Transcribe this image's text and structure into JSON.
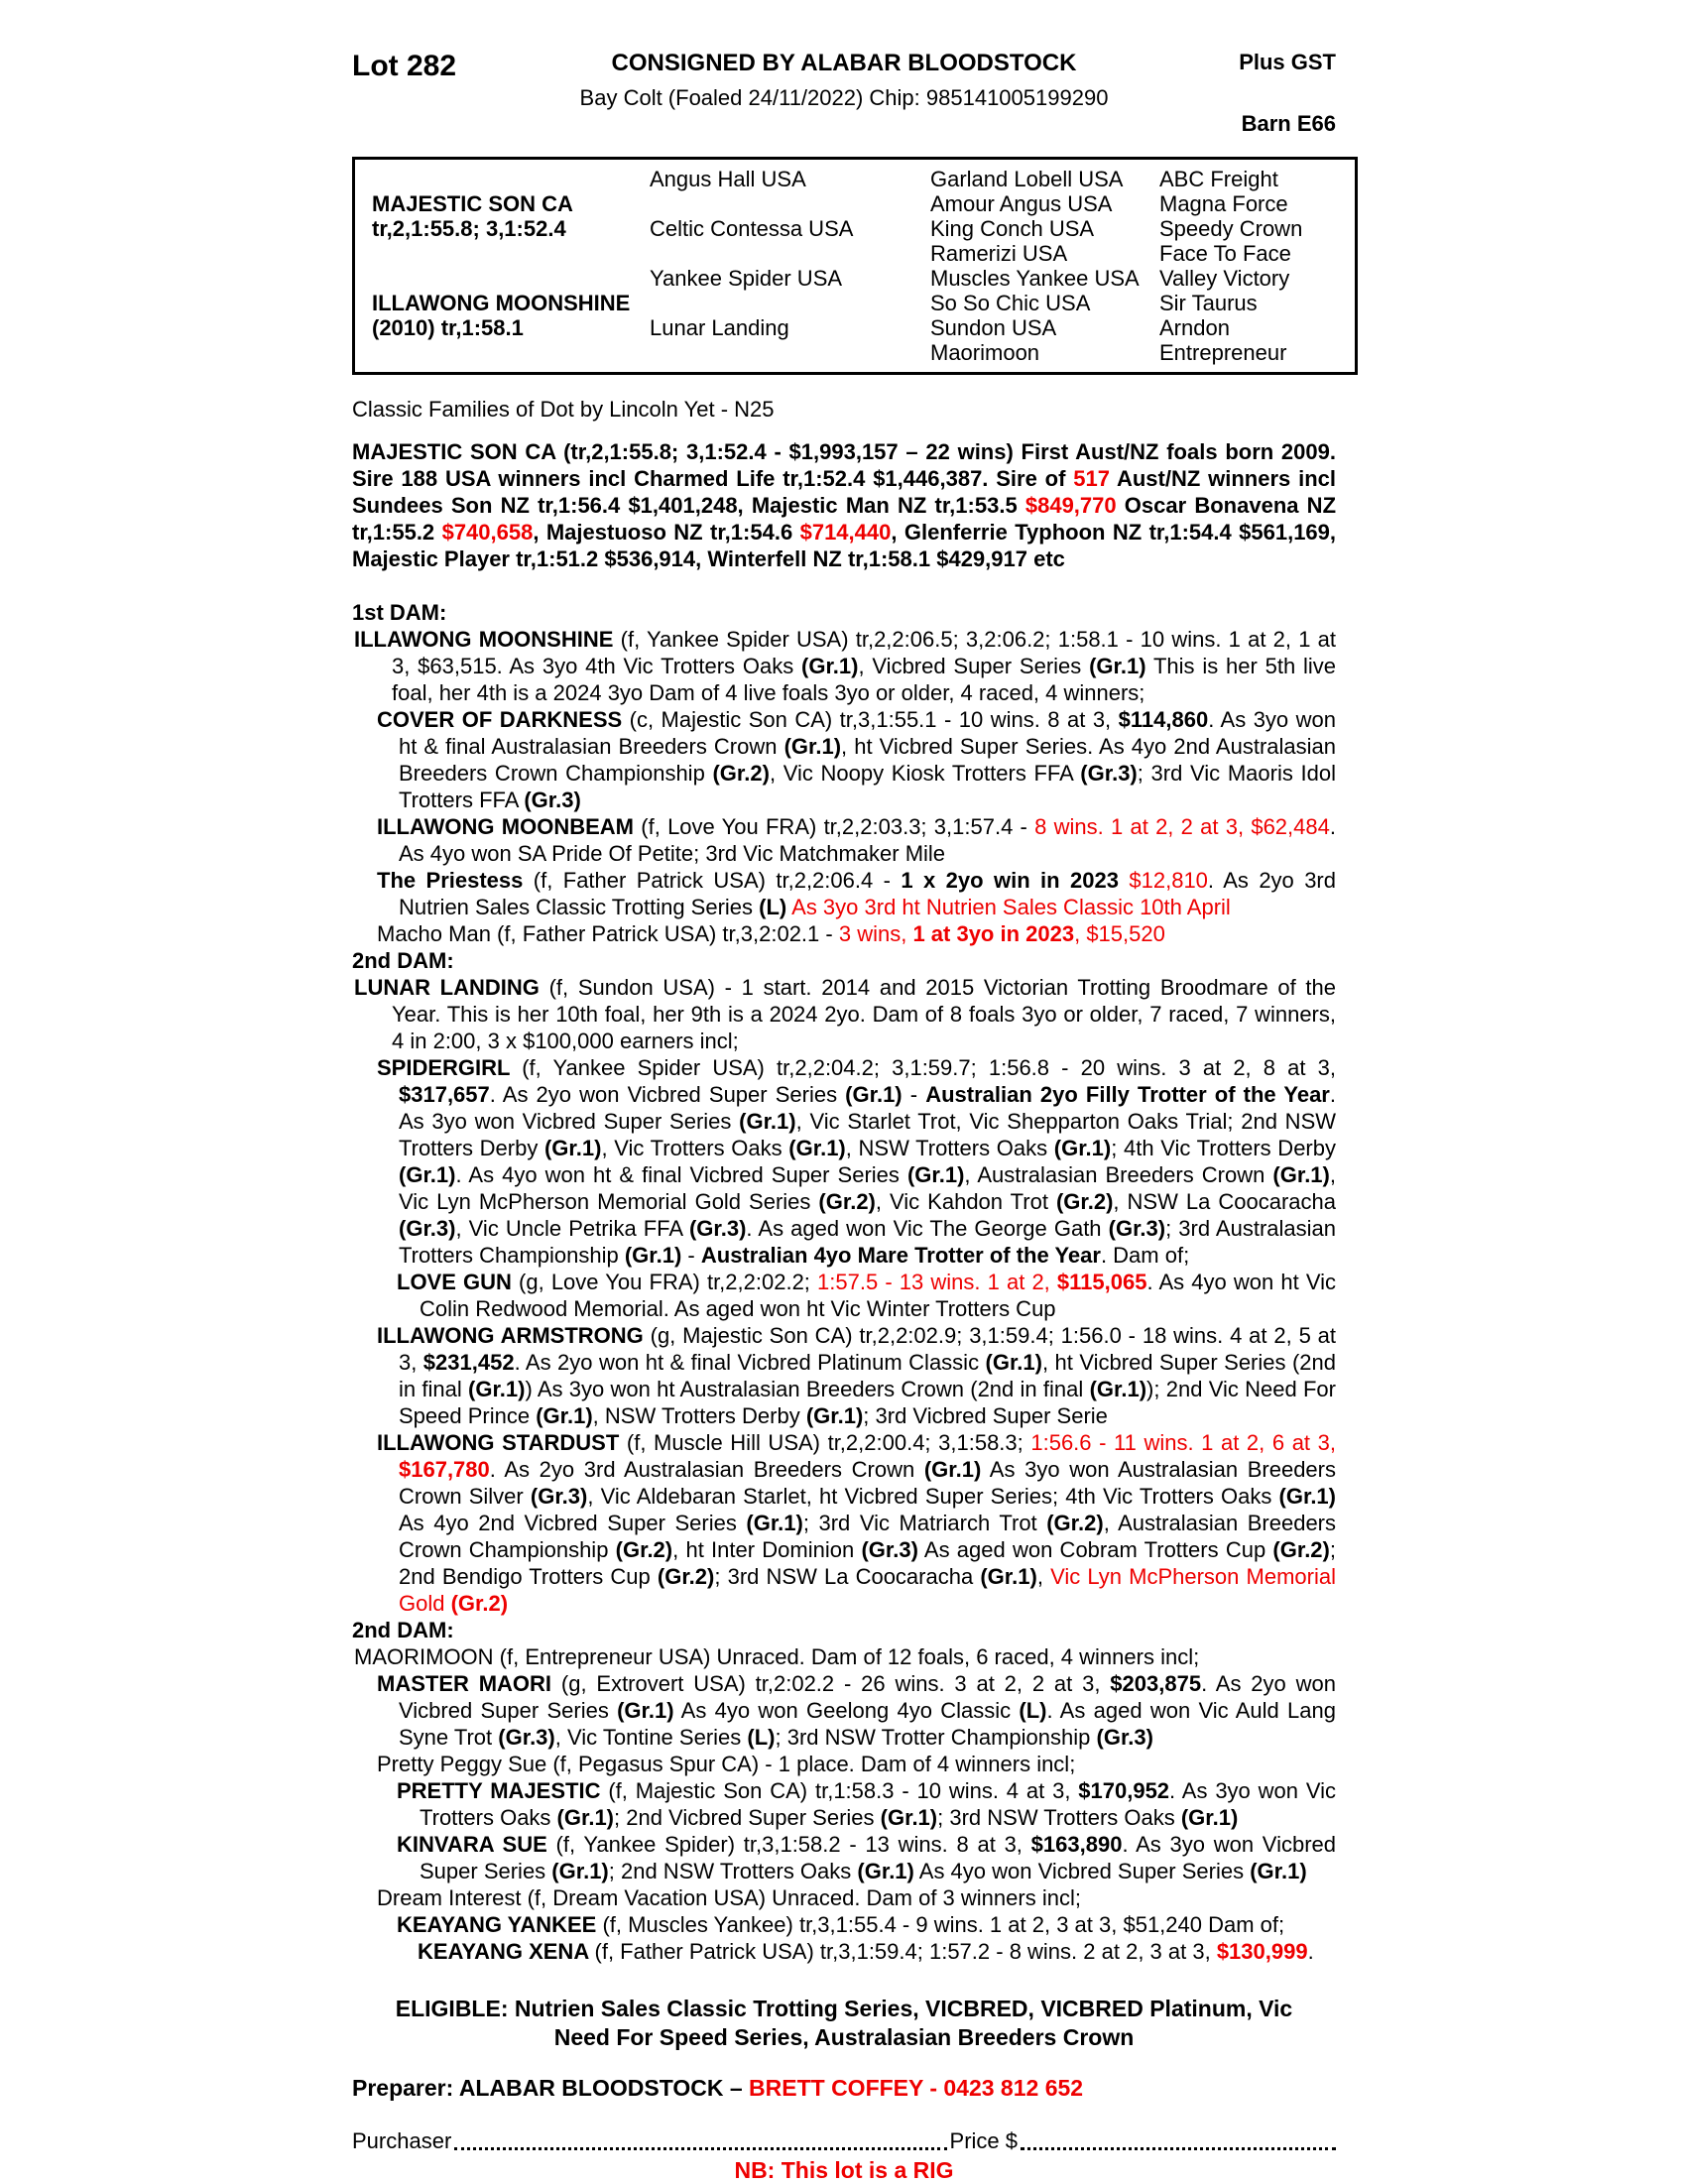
{
  "colors": {
    "accent_red": "#ee0000",
    "text": "#000000"
  },
  "header": {
    "lot": "Lot 282",
    "consignor": "CONSIGNED BY ALABAR BLOODSTOCK",
    "plus_gst": "Plus GST",
    "description": "Bay Colt (Foaled 24/11/2022) Chip: 985141005199290",
    "barn": "Barn E66"
  },
  "pedigree_table": {
    "cells": [
      {
        "r": 1,
        "c": 2,
        "t": "Angus Hall USA"
      },
      {
        "r": 1,
        "c": 3,
        "t": "Garland Lobell USA"
      },
      {
        "r": 1,
        "c": 4,
        "t": "ABC Freight"
      },
      {
        "r": 2,
        "c": 1,
        "t": "MAJESTIC SON CA",
        "b": true
      },
      {
        "r": 2,
        "c": 3,
        "t": "Amour Angus USA"
      },
      {
        "r": 2,
        "c": 4,
        "t": "Magna Force"
      },
      {
        "r": 3,
        "c": 1,
        "t": "tr,2,1:55.8; 3,1:52.4",
        "b": true
      },
      {
        "r": 3,
        "c": 2,
        "t": "Celtic Contessa USA"
      },
      {
        "r": 3,
        "c": 3,
        "t": "King Conch USA"
      },
      {
        "r": 3,
        "c": 4,
        "t": "Speedy Crown"
      },
      {
        "r": 4,
        "c": 3,
        "t": "Ramerizi USA"
      },
      {
        "r": 4,
        "c": 4,
        "t": "Face To Face"
      },
      {
        "r": 5,
        "c": 2,
        "t": "Yankee Spider USA"
      },
      {
        "r": 5,
        "c": 3,
        "t": "Muscles Yankee USA"
      },
      {
        "r": 5,
        "c": 4,
        "t": "Valley Victory"
      },
      {
        "r": 6,
        "c": 1,
        "t": "ILLAWONG MOONSHINE",
        "b": true
      },
      {
        "r": 6,
        "c": 3,
        "t": "So So Chic USA"
      },
      {
        "r": 6,
        "c": 4,
        "t": "Sir Taurus"
      },
      {
        "r": 7,
        "c": 1,
        "t": "(2010) tr,1:58.1",
        "b": true
      },
      {
        "r": 7,
        "c": 2,
        "t": "Lunar Landing"
      },
      {
        "r": 7,
        "c": 3,
        "t": "Sundon USA"
      },
      {
        "r": 7,
        "c": 4,
        "t": "Arndon"
      },
      {
        "r": 8,
        "c": 3,
        "t": "Maorimoon"
      },
      {
        "r": 8,
        "c": 4,
        "t": "Entrepreneur"
      }
    ]
  },
  "family_line": "Classic Families of Dot by Lincoln Yet - N25",
  "body": {
    "paragraphs": [
      {
        "cls": "p-sire",
        "seg": [
          {
            "t": "MAJESTIC SON CA (tr,2,1:55.8; 3,1:52.4 - $1,993,157 – 22 wins) First Aust/NZ foals born 2009. Sire 188 USA winners incl Charmed Life tr,1:52.4 $1,446,387. Sire of "
          },
          {
            "t": "517",
            "s": "r"
          },
          {
            "t": " Aust/NZ winners incl Sundees Son NZ tr,1:56.4 $1,401,248, Majestic Man NZ tr,1:53.5 "
          },
          {
            "t": "$849,770",
            "s": "r"
          },
          {
            "t": " Oscar Bonavena NZ tr,1:55.2 "
          },
          {
            "t": "$740,658",
            "s": "r"
          },
          {
            "t": ", Majestuoso NZ tr,1:54.6 "
          },
          {
            "t": "$714,440",
            "s": "r"
          },
          {
            "t": ", Glenferrie Typhoon NZ tr,1:54.4 $561,169, Majestic Player tr,1:51.2 $536,914, Winterfell NZ tr,1:58.1 $429,917 etc"
          }
        ]
      },
      {
        "cls": "p-head gap",
        "seg": [
          {
            "t": "1st DAM:"
          }
        ]
      },
      {
        "cls": "p-dam",
        "seg": [
          {
            "t": "ILLAWONG MOONSHINE ",
            "s": "b"
          },
          {
            "t": "(f, Yankee Spider USA) tr,2,2:06.5; 3,2:06.2; 1:58.1 - 10 wins. 1 at 2, 1 at 3, $63,515. As 3yo 4th Vic Trotters Oaks "
          },
          {
            "t": "(Gr.1)",
            "s": "b"
          },
          {
            "t": ", Vicbred Super Series "
          },
          {
            "t": "(Gr.1)",
            "s": "b"
          },
          {
            "t": " This is her 5th live foal, her 4th is a 2024 3yo Dam of 4 live foals 3yo or older, 4 raced, 4 winners;"
          }
        ]
      },
      {
        "cls": "p-prog1",
        "seg": [
          {
            "t": "COVER OF DARKNESS ",
            "s": "b"
          },
          {
            "t": "(c, Majestic Son CA) tr,3,1:55.1 - 10 wins. 8 at 3, "
          },
          {
            "t": "$114,860",
            "s": "b"
          },
          {
            "t": ". As 3yo won ht & final Australasian Breeders Crown "
          },
          {
            "t": "(Gr.1)",
            "s": "b"
          },
          {
            "t": ", ht Vicbred Super Series. As 4yo 2nd Australasian Breeders Crown Championship "
          },
          {
            "t": "(Gr.2)",
            "s": "b"
          },
          {
            "t": ", Vic Noopy Kiosk Trotters FFA "
          },
          {
            "t": "(Gr.3)",
            "s": "b"
          },
          {
            "t": "; 3rd Vic Maoris Idol Trotters FFA "
          },
          {
            "t": "(Gr.3)",
            "s": "b"
          }
        ]
      },
      {
        "cls": "p-prog1",
        "seg": [
          {
            "t": "ILLAWONG MOONBEAM ",
            "s": "b"
          },
          {
            "t": "(f, Love You FRA) tr,2,2:03.3; 3,1:57.4 - "
          },
          {
            "t": "8 wins. 1 at 2, 2 at 3, $62,484",
            "s": "r"
          },
          {
            "t": ". As 4yo won SA Pride Of Petite; 3rd Vic Matchmaker Mile"
          }
        ]
      },
      {
        "cls": "p-prog1",
        "seg": [
          {
            "t": "The Priestess ",
            "s": "b"
          },
          {
            "t": "(f, Father Patrick USA) tr,2,2:06.4 - "
          },
          {
            "t": "1 x 2yo win in 2023",
            "s": "b"
          },
          {
            "t": "  "
          },
          {
            "t": "$12,810",
            "s": "r"
          },
          {
            "t": ". As 2yo 3rd Nutrien Sales Classic Trotting Series "
          },
          {
            "t": "(L)",
            "s": "b"
          },
          {
            "t": " "
          },
          {
            "t": "As 3yo 3rd ht Nutrien Sales Classic 10th April",
            "s": "r"
          }
        ]
      },
      {
        "cls": "p-prog1",
        "seg": [
          {
            "t": "Macho Man (f, Father Patrick USA) tr,3,2:02.1 - "
          },
          {
            "t": "3 wins, ",
            "s": "r"
          },
          {
            "t": "1 at 3yo in 2023",
            "s": "br"
          },
          {
            "t": ", $15,520",
            "s": "r"
          }
        ]
      },
      {
        "cls": "p-head",
        "seg": [
          {
            "t": "2nd DAM:"
          }
        ]
      },
      {
        "cls": "p-dam",
        "seg": [
          {
            "t": "LUNAR LANDING ",
            "s": "b"
          },
          {
            "t": "(f, Sundon USA) - 1 start. 2014 and 2015 Victorian Trotting Broodmare of the Year. This is her 10th foal, her 9th is a 2024 2yo. Dam of 8 foals 3yo or older, 7 raced, 7 winners, 4 in 2:00, 3 x $100,000 earners incl;"
          }
        ]
      },
      {
        "cls": "p-prog1",
        "seg": [
          {
            "t": "SPIDERGIRL ",
            "s": "b"
          },
          {
            "t": "(f, Yankee Spider USA) tr,2,2:04.2; 3,1:59.7; 1:56.8 - 20 wins. 3 at 2, 8 at 3, "
          },
          {
            "t": "$317,657",
            "s": "b"
          },
          {
            "t": ". As 2yo won Vicbred Super Series "
          },
          {
            "t": "(Gr.1)",
            "s": "b"
          },
          {
            "t": " - "
          },
          {
            "t": "Australian 2yo Filly Trotter of the Year",
            "s": "b"
          },
          {
            "t": ". As 3yo won Vicbred Super Series "
          },
          {
            "t": "(Gr.1)",
            "s": "b"
          },
          {
            "t": ", Vic Starlet Trot, Vic Shepparton Oaks Trial; 2nd NSW Trotters Derby "
          },
          {
            "t": "(Gr.1)",
            "s": "b"
          },
          {
            "t": ", Vic Trotters Oaks "
          },
          {
            "t": "(Gr.1)",
            "s": "b"
          },
          {
            "t": ", NSW Trotters Oaks "
          },
          {
            "t": "(Gr.1)",
            "s": "b"
          },
          {
            "t": "; 4th Vic Trotters Derby "
          },
          {
            "t": "(Gr.1)",
            "s": "b"
          },
          {
            "t": ". As 4yo won ht & final Vicbred Super Series "
          },
          {
            "t": "(Gr.1)",
            "s": "b"
          },
          {
            "t": ", Australasian Breeders Crown "
          },
          {
            "t": "(Gr.1)",
            "s": "b"
          },
          {
            "t": ", Vic Lyn McPherson Memorial Gold Series "
          },
          {
            "t": "(Gr.2)",
            "s": "b"
          },
          {
            "t": ", Vic Kahdon Trot "
          },
          {
            "t": "(Gr.2)",
            "s": "b"
          },
          {
            "t": ", NSW La Coocaracha "
          },
          {
            "t": "(Gr.3)",
            "s": "b"
          },
          {
            "t": ", Vic Uncle Petrika FFA "
          },
          {
            "t": "(Gr.3)",
            "s": "b"
          },
          {
            "t": ". As aged won Vic The George Gath "
          },
          {
            "t": "(Gr.3)",
            "s": "b"
          },
          {
            "t": "; 3rd Australasian Trotters Championship "
          },
          {
            "t": "(Gr.1)",
            "s": "b"
          },
          {
            "t": " - "
          },
          {
            "t": "Australian 4yo Mare Trotter of the Year",
            "s": "b"
          },
          {
            "t": ". Dam of;"
          }
        ]
      },
      {
        "cls": "p-prog2",
        "seg": [
          {
            "t": "LOVE GUN ",
            "s": "b"
          },
          {
            "t": "(g, Love You FRA) tr,2,2:02.2; "
          },
          {
            "t": "1:57.5 - 13 wins. 1 at 2, ",
            "s": "r"
          },
          {
            "t": "$115,065",
            "s": "br"
          },
          {
            "t": ". As 4yo won ht Vic Colin Redwood Memorial. As aged won ht Vic Winter Trotters Cup"
          }
        ]
      },
      {
        "cls": "p-prog1",
        "seg": [
          {
            "t": "ILLAWONG ARMSTRONG ",
            "s": "b"
          },
          {
            "t": "(g, Majestic Son CA) tr,2,2:02.9; 3,1:59.4; 1:56.0 - 18 wins. 4 at 2, 5 at 3, "
          },
          {
            "t": "$231,452",
            "s": "b"
          },
          {
            "t": ". As 2yo won ht & final Vicbred Platinum Classic "
          },
          {
            "t": "(Gr.1)",
            "s": "b"
          },
          {
            "t": ", ht Vicbred Super Series (2nd in final "
          },
          {
            "t": "(Gr.1)",
            "s": "b"
          },
          {
            "t": ") As 3yo won ht Australasian Breeders Crown (2nd in final "
          },
          {
            "t": "(Gr.1)",
            "s": "b"
          },
          {
            "t": "); 2nd Vic Need For Speed Prince "
          },
          {
            "t": "(Gr.1)",
            "s": "b"
          },
          {
            "t": ", NSW Trotters Derby "
          },
          {
            "t": "(Gr.1)",
            "s": "b"
          },
          {
            "t": "; 3rd Vicbred Super Serie"
          }
        ]
      },
      {
        "cls": "p-prog1",
        "seg": [
          {
            "t": "ILLAWONG STARDUST ",
            "s": "b"
          },
          {
            "t": "(f, Muscle Hill USA) tr,2,2:00.4; 3,1:58.3; "
          },
          {
            "t": "1:56.6 - 11 wins. 1 at 2, 6 at 3, ",
            "s": "r"
          },
          {
            "t": "$167,780",
            "s": "br"
          },
          {
            "t": ". As 2yo 3rd Australasian Breeders Crown "
          },
          {
            "t": "(Gr.1)",
            "s": "b"
          },
          {
            "t": " As 3yo won Australasian Breeders Crown Silver "
          },
          {
            "t": "(Gr.3)",
            "s": "b"
          },
          {
            "t": ", Vic Aldebaran Starlet, ht Vicbred Super Series; 4th Vic Trotters Oaks "
          },
          {
            "t": "(Gr.1)",
            "s": "b"
          },
          {
            "t": " As 4yo 2nd Vicbred Super Series "
          },
          {
            "t": "(Gr.1)",
            "s": "b"
          },
          {
            "t": "; 3rd Vic Matriarch Trot "
          },
          {
            "t": "(Gr.2)",
            "s": "b"
          },
          {
            "t": ", Australasian Breeders Crown Championship "
          },
          {
            "t": "(Gr.2)",
            "s": "b"
          },
          {
            "t": ", ht Inter Dominion "
          },
          {
            "t": "(Gr.3)",
            "s": "b"
          },
          {
            "t": " As aged won Cobram Trotters Cup "
          },
          {
            "t": "(Gr.2)",
            "s": "b"
          },
          {
            "t": "; 2nd Bendigo Trotters Cup "
          },
          {
            "t": "(Gr.2)",
            "s": "b"
          },
          {
            "t": "; 3rd NSW La Coocaracha "
          },
          {
            "t": "(Gr.1)",
            "s": "b"
          },
          {
            "t": ", "
          },
          {
            "t": "Vic Lyn McPherson Memorial Gold ",
            "s": "r"
          },
          {
            "t": "(Gr.2)",
            "s": "br"
          }
        ]
      },
      {
        "cls": "p-head",
        "seg": [
          {
            "t": "2nd DAM:"
          }
        ]
      },
      {
        "cls": "p-dam",
        "seg": [
          {
            "t": "MAORIMOON (f, Entrepreneur USA) Unraced. Dam of 12 foals, 6 raced, 4 winners incl;"
          }
        ]
      },
      {
        "cls": "p-prog1",
        "seg": [
          {
            "t": "MASTER MAORI ",
            "s": "b"
          },
          {
            "t": "(g, Extrovert USA) tr,2:02.2 - 26 wins. 3 at 2, 2 at 3, "
          },
          {
            "t": "$203,875",
            "s": "b"
          },
          {
            "t": ". As 2yo won Vicbred Super Series "
          },
          {
            "t": "(Gr.1)",
            "s": "b"
          },
          {
            "t": " As 4yo won Geelong 4yo Classic "
          },
          {
            "t": "(L)",
            "s": "b"
          },
          {
            "t": ". As aged won Vic Auld Lang Syne Trot "
          },
          {
            "t": "(Gr.3)",
            "s": "b"
          },
          {
            "t": ", Vic Tontine Series "
          },
          {
            "t": "(L)",
            "s": "b"
          },
          {
            "t": "; 3rd NSW Trotter Championship "
          },
          {
            "t": "(Gr.3)",
            "s": "b"
          }
        ]
      },
      {
        "cls": "p-prog1",
        "seg": [
          {
            "t": "Pretty Peggy Sue (f, Pegasus Spur CA) - 1 place. Dam of 4 winners incl;"
          }
        ]
      },
      {
        "cls": "p-prog2",
        "seg": [
          {
            "t": "PRETTY MAJESTIC ",
            "s": "b"
          },
          {
            "t": "(f, Majestic Son CA) tr,1:58.3 - 10 wins. 4 at 3, "
          },
          {
            "t": "$170,952",
            "s": "b"
          },
          {
            "t": ". As 3yo won Vic Trotters Oaks "
          },
          {
            "t": "(Gr.1)",
            "s": "b"
          },
          {
            "t": "; 2nd Vicbred Super Series "
          },
          {
            "t": "(Gr.1)",
            "s": "b"
          },
          {
            "t": "; 3rd NSW Trotters Oaks "
          },
          {
            "t": "(Gr.1)",
            "s": "b"
          }
        ]
      },
      {
        "cls": "p-prog2",
        "seg": [
          {
            "t": "KINVARA SUE ",
            "s": "b"
          },
          {
            "t": "(f, Yankee Spider) tr,3,1:58.2 - 13 wins. 8 at 3, "
          },
          {
            "t": "$163,890",
            "s": "b"
          },
          {
            "t": ". As 3yo won Vicbred Super Series "
          },
          {
            "t": "(Gr.1)",
            "s": "b"
          },
          {
            "t": "; 2nd NSW Trotters Oaks "
          },
          {
            "t": "(Gr.1)",
            "s": "b"
          },
          {
            "t": " As 4yo won Vicbred Super Series "
          },
          {
            "t": "(Gr.1)",
            "s": "b"
          }
        ]
      },
      {
        "cls": "p-prog1",
        "seg": [
          {
            "t": "Dream Interest (f, Dream Vacation USA) Unraced. Dam of 3 winners incl;"
          }
        ]
      },
      {
        "cls": "p-prog2",
        "seg": [
          {
            "t": "KEAYANG YANKEE ",
            "s": "b"
          },
          {
            "t": "(f, Muscles Yankee) tr,3,1:55.4 - 9 wins. 1 at 2, 3 at 3, $51,240 Dam of;"
          }
        ]
      },
      {
        "cls": "p-prog3",
        "seg": [
          {
            "t": "KEAYANG XENA ",
            "s": "b"
          },
          {
            "t": "(f, Father Patrick USA) tr,3,1:59.4; 1:57.2 - 8 wins. 2 at 2, 3 at 3, "
          },
          {
            "t": "$130,999",
            "s": "br"
          },
          {
            "t": "."
          }
        ]
      }
    ]
  },
  "footer": {
    "eligible_lines": [
      "ELIGIBLE: Nutrien Sales Classic Trotting Series, VICBRED, VICBRED Platinum, Vic",
      "Need For Speed Series, Australasian Breeders Crown"
    ],
    "preparer_label": "Preparer: ALABAR BLOODSTOCK – ",
    "preparer_contact": "BRETT COFFEY - 0423 812 652",
    "purchaser_label": "Purchaser",
    "price_label": "Price $",
    "nb_line": "NB: This lot is a RIG"
  }
}
